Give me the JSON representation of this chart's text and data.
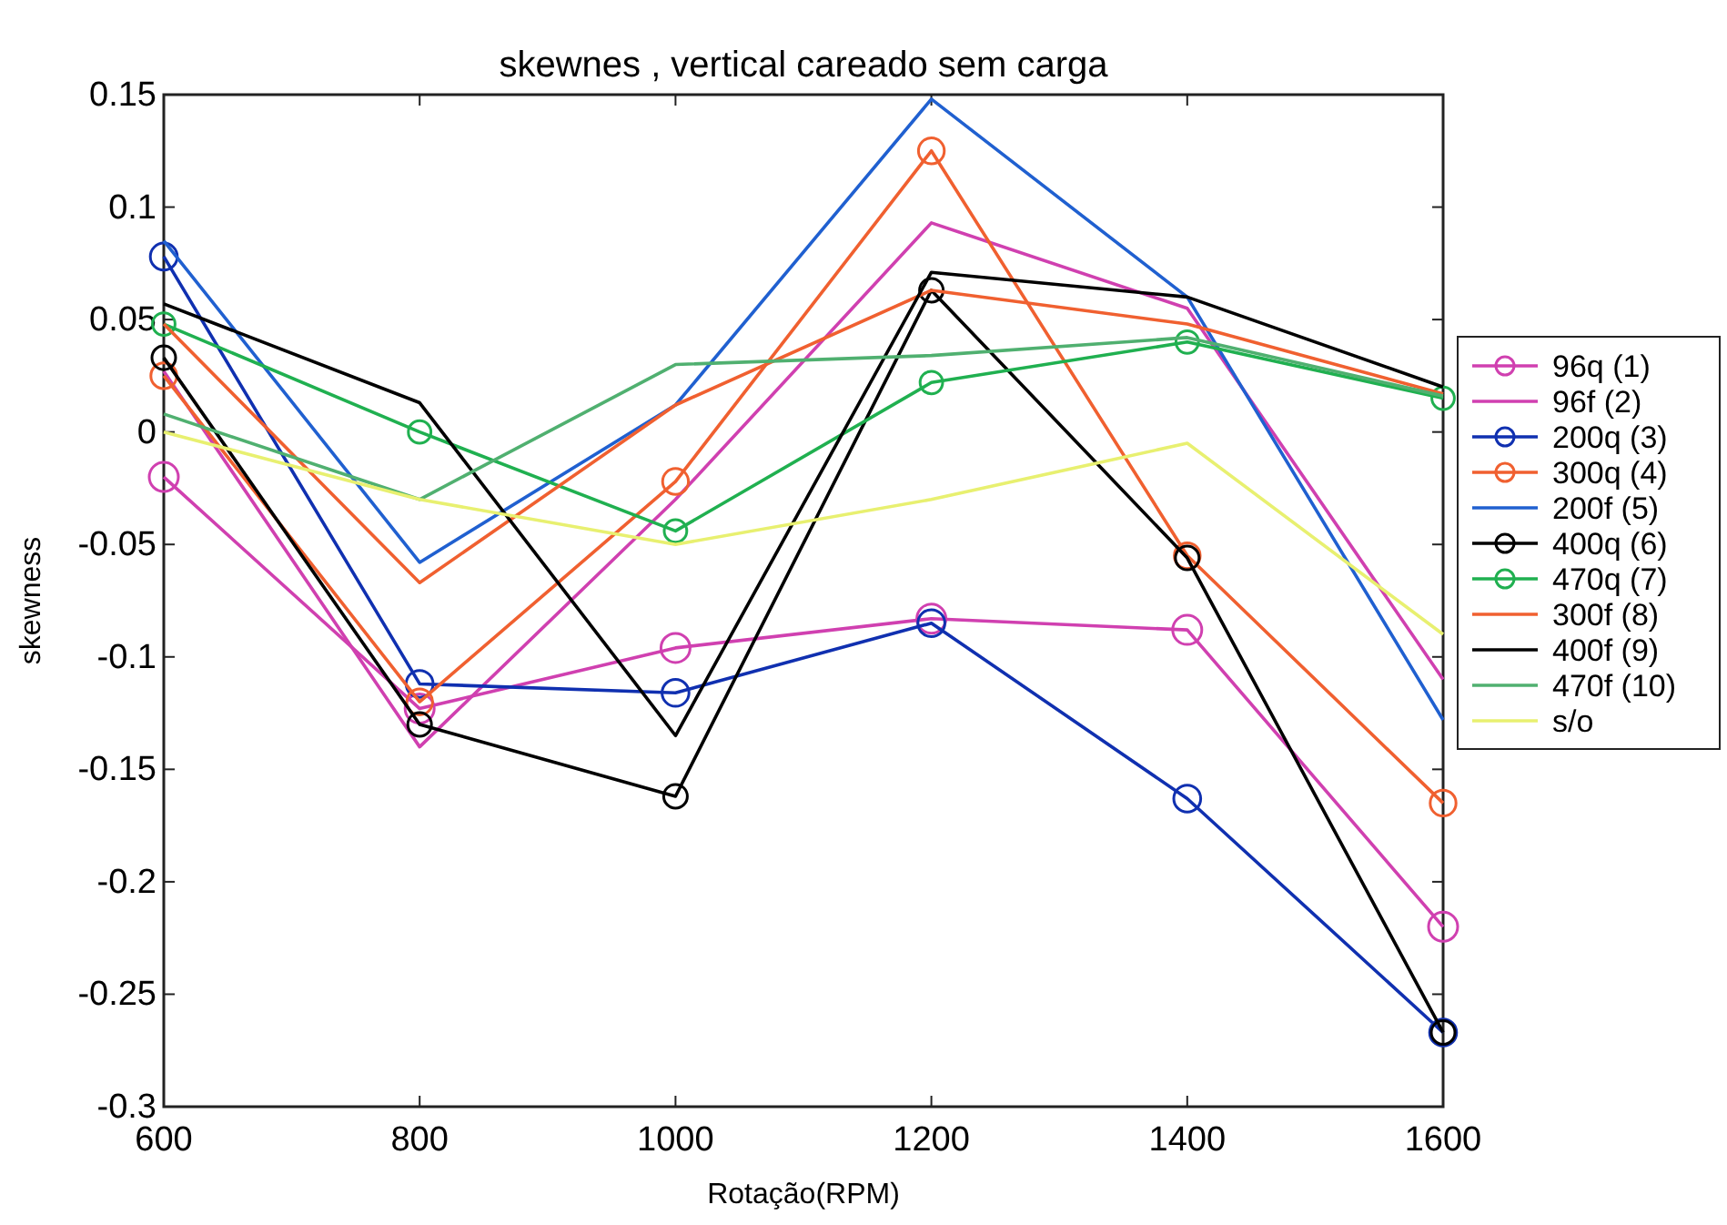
{
  "chart_data": {
    "type": "line",
    "title": "skewnes , vertical careado sem carga",
    "xlabel": "Rotação(RPM)",
    "ylabel": "skewness",
    "x": [
      600,
      800,
      1000,
      1200,
      1400,
      1600
    ],
    "xlim": [
      600,
      1600
    ],
    "xticks": [
      600,
      800,
      1000,
      1200,
      1400,
      1600
    ],
    "ylim": [
      -0.3,
      0.15
    ],
    "yticks": [
      -0.3,
      -0.25,
      -0.2,
      -0.15,
      -0.1,
      -0.05,
      0,
      0.05,
      0.1,
      0.15
    ],
    "grid": false,
    "legend": "right",
    "line_style": "solid",
    "series": [
      {
        "name": "96q (1)",
        "color": "#d040b0",
        "marker": "circle",
        "values": [
          -0.02,
          -0.123,
          -0.096,
          -0.083,
          -0.088,
          -0.22
        ]
      },
      {
        "name": "96f (2)",
        "color": "#d040b0",
        "marker": "none",
        "values": [
          0.027,
          -0.14,
          -0.03,
          0.093,
          0.055,
          -0.11
        ]
      },
      {
        "name": "200q (3)",
        "color": "#1030b0",
        "marker": "circle",
        "values": [
          0.078,
          -0.112,
          -0.116,
          -0.085,
          -0.163,
          -0.267
        ]
      },
      {
        "name": "300q (4)",
        "color": "#f06030",
        "marker": "circle",
        "values": [
          0.025,
          -0.12,
          -0.022,
          0.125,
          -0.055,
          -0.165
        ]
      },
      {
        "name": "200f (5)",
        "color": "#2060d0",
        "marker": "none",
        "values": [
          0.085,
          -0.058,
          0.012,
          0.148,
          0.06,
          -0.128
        ]
      },
      {
        "name": "400q (6)",
        "color": "#000000",
        "marker": "circle",
        "values": [
          0.033,
          -0.13,
          -0.162,
          0.063,
          -0.056,
          -0.267
        ]
      },
      {
        "name": "470q (7)",
        "color": "#20b050",
        "marker": "circle",
        "values": [
          0.048,
          0.0,
          -0.044,
          0.022,
          0.04,
          0.015
        ]
      },
      {
        "name": "300f (8)",
        "color": "#f06030",
        "marker": "none",
        "values": [
          0.048,
          -0.067,
          0.012,
          0.063,
          0.048,
          0.017
        ]
      },
      {
        "name": "400f (9)",
        "color": "#000000",
        "marker": "none",
        "values": [
          0.057,
          0.013,
          -0.135,
          0.071,
          0.06,
          0.02
        ]
      },
      {
        "name": "470f (10)",
        "color": "#50b070",
        "marker": "none",
        "values": [
          0.008,
          -0.03,
          0.03,
          0.034,
          0.042,
          0.016
        ]
      },
      {
        "name": "s/o",
        "color": "#e8f070",
        "marker": "none",
        "values": [
          0.0,
          -0.03,
          -0.05,
          -0.03,
          -0.005,
          -0.09
        ]
      }
    ]
  }
}
